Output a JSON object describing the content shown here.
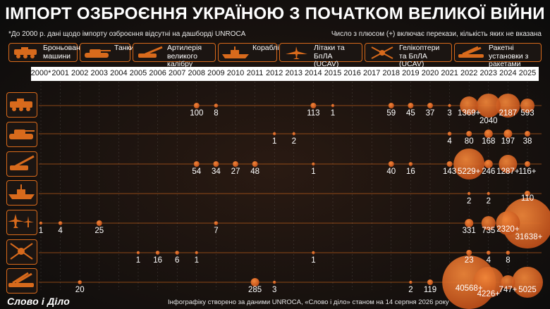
{
  "title": "ІМПОРТ ОЗБРОЄННЯ УКРАЇНОЮ З ПОЧАТКОМ ВЕЛИКОЇ ВІЙНИ",
  "note_left": "*До 2000 р. дані щодо імпорту озброєння відсутні на дашборді UNROCA",
  "note_right": "Число з плюсом (+) включає перекази, кількість яких не вказана",
  "categories": [
    {
      "label": "Броньовані машини",
      "icon": "armored-vehicle-icon"
    },
    {
      "label": "Танки",
      "icon": "tank-icon"
    },
    {
      "label": "Артилерія великого калібру",
      "icon": "artillery-icon"
    },
    {
      "label": "Кораблі",
      "icon": "ship-icon"
    },
    {
      "label": "Літаки та БпЛА (UCAV)",
      "icon": "aircraft-icon"
    },
    {
      "label": "Гелікоптери та БпЛА (UCAV)",
      "icon": "helicopter-icon"
    },
    {
      "label": "Ракетні установки з ракетами",
      "icon": "rocket-launcher-icon"
    }
  ],
  "footer": "Інфографіку створено за даними UNROCA, «Слово і діло» станом на 14 серпня 2026 року",
  "logo": "Слово і Діло",
  "colors": {
    "accent": "#d86a1c",
    "bubble": "#e0651a",
    "background": "#121212"
  },
  "chart_data": {
    "type": "scatter",
    "x": [
      "2000*",
      "2001",
      "2002",
      "2003",
      "2004",
      "2005",
      "2006",
      "2007",
      "2008",
      "2009",
      "2010",
      "2011",
      "2012",
      "2013",
      "2014",
      "2015",
      "2016",
      "2017",
      "2018",
      "2019",
      "2020",
      "2021",
      "2022",
      "2023",
      "2024",
      "2025"
    ],
    "rows": [
      "Броньовані машини",
      "Танки",
      "Артилерія великого калібру",
      "Кораблі",
      "Літаки та БпЛА (UCAV)",
      "Гелікоптери та БпЛА (UCAV)",
      "Ракетні установки з ракетами"
    ],
    "points": [
      {
        "row": 0,
        "year": "2008",
        "value": 100,
        "label": "100"
      },
      {
        "row": 0,
        "year": "2009",
        "value": 8,
        "label": "8"
      },
      {
        "row": 0,
        "year": "2014",
        "value": 113,
        "label": "113"
      },
      {
        "row": 0,
        "year": "2015",
        "value": 1,
        "label": "1"
      },
      {
        "row": 0,
        "year": "2018",
        "value": 59,
        "label": "59"
      },
      {
        "row": 0,
        "year": "2019",
        "value": 45,
        "label": "45"
      },
      {
        "row": 0,
        "year": "2020",
        "value": 37,
        "label": "37"
      },
      {
        "row": 0,
        "year": "2021",
        "value": 3,
        "label": "3"
      },
      {
        "row": 0,
        "year": "2022",
        "value": 1369,
        "label": "1369+"
      },
      {
        "row": 0,
        "year": "2023",
        "value": 2040,
        "label": "2040"
      },
      {
        "row": 0,
        "year": "2024",
        "value": 2187,
        "label": "2187"
      },
      {
        "row": 0,
        "year": "2025",
        "value": 593,
        "label": "593"
      },
      {
        "row": 1,
        "year": "2012",
        "value": 1,
        "label": "1"
      },
      {
        "row": 1,
        "year": "2013",
        "value": 2,
        "label": "2"
      },
      {
        "row": 1,
        "year": "2021",
        "value": 4,
        "label": "4"
      },
      {
        "row": 1,
        "year": "2022",
        "value": 80,
        "label": "80"
      },
      {
        "row": 1,
        "year": "2023",
        "value": 168,
        "label": "168"
      },
      {
        "row": 1,
        "year": "2024",
        "value": 197,
        "label": "197"
      },
      {
        "row": 1,
        "year": "2025",
        "value": 38,
        "label": "38"
      },
      {
        "row": 2,
        "year": "2008",
        "value": 54,
        "label": "54"
      },
      {
        "row": 2,
        "year": "2009",
        "value": 34,
        "label": "34"
      },
      {
        "row": 2,
        "year": "2010",
        "value": 27,
        "label": "27"
      },
      {
        "row": 2,
        "year": "2011",
        "value": 48,
        "label": "48"
      },
      {
        "row": 2,
        "year": "2014",
        "value": 1,
        "label": "1"
      },
      {
        "row": 2,
        "year": "2018",
        "value": 40,
        "label": "40"
      },
      {
        "row": 2,
        "year": "2019",
        "value": 16,
        "label": "16"
      },
      {
        "row": 2,
        "year": "2021",
        "value": 143,
        "label": "143"
      },
      {
        "row": 2,
        "year": "2022",
        "value": 5229,
        "label": "5229+"
      },
      {
        "row": 2,
        "year": "2023",
        "value": 246,
        "label": "246"
      },
      {
        "row": 2,
        "year": "2024",
        "value": 1287,
        "label": "1287+"
      },
      {
        "row": 2,
        "year": "2025",
        "value": 116,
        "label": "116+"
      },
      {
        "row": 3,
        "year": "2022",
        "value": 2,
        "label": "2"
      },
      {
        "row": 3,
        "year": "2023",
        "value": 2,
        "label": "2"
      },
      {
        "row": 3,
        "year": "2025",
        "value": 110,
        "label": "110"
      },
      {
        "row": 4,
        "year": "2000*",
        "value": 1,
        "label": "1"
      },
      {
        "row": 4,
        "year": "2001",
        "value": 4,
        "label": "4"
      },
      {
        "row": 4,
        "year": "2003",
        "value": 25,
        "label": "25"
      },
      {
        "row": 4,
        "year": "2009",
        "value": 7,
        "label": "7"
      },
      {
        "row": 4,
        "year": "2022",
        "value": 331,
        "label": "331"
      },
      {
        "row": 4,
        "year": "2023",
        "value": 735,
        "label": "735"
      },
      {
        "row": 4,
        "year": "2024",
        "value": 2320,
        "label": "2320+"
      },
      {
        "row": 4,
        "year": "2025",
        "value": 31638,
        "label": "31638+"
      },
      {
        "row": 5,
        "year": "2005",
        "value": 1,
        "label": "1"
      },
      {
        "row": 5,
        "year": "2006",
        "value": 16,
        "label": "16"
      },
      {
        "row": 5,
        "year": "2007",
        "value": 6,
        "label": "6"
      },
      {
        "row": 5,
        "year": "2008",
        "value": 1,
        "label": "1"
      },
      {
        "row": 5,
        "year": "2014",
        "value": 1,
        "label": "1"
      },
      {
        "row": 5,
        "year": "2022",
        "value": 23,
        "label": "23"
      },
      {
        "row": 5,
        "year": "2023",
        "value": 4,
        "label": "4"
      },
      {
        "row": 5,
        "year": "2024",
        "value": 8,
        "label": "8"
      },
      {
        "row": 6,
        "year": "2002",
        "value": 20,
        "label": "20"
      },
      {
        "row": 6,
        "year": "2011",
        "value": 285,
        "label": "285"
      },
      {
        "row": 6,
        "year": "2012",
        "value": 3,
        "label": "3"
      },
      {
        "row": 6,
        "year": "2019",
        "value": 2,
        "label": "2"
      },
      {
        "row": 6,
        "year": "2020",
        "value": 119,
        "label": "119"
      },
      {
        "row": 6,
        "year": "2022",
        "value": 40568,
        "label": "40568+"
      },
      {
        "row": 6,
        "year": "2023",
        "value": 4226,
        "label": "4226+"
      },
      {
        "row": 6,
        "year": "2024",
        "value": 747,
        "label": "747+"
      },
      {
        "row": 6,
        "year": "2025",
        "value": 5025,
        "label": "5025"
      }
    ]
  }
}
